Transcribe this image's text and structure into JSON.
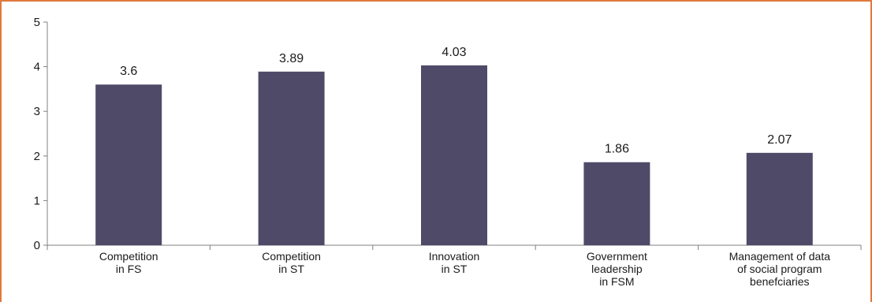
{
  "chart_data": {
    "type": "bar",
    "categories": [
      [
        "Competition",
        "in FS"
      ],
      [
        "Competition",
        "in ST"
      ],
      [
        "Innovation",
        "in ST"
      ],
      [
        "Government",
        "leadership",
        "in FSM"
      ],
      [
        "Management of data",
        "of social program",
        "benefciaries"
      ]
    ],
    "values": [
      3.6,
      3.89,
      4.03,
      1.86,
      2.07
    ],
    "data_labels": [
      "3.6",
      "3.89",
      "4.03",
      "1.86",
      "2.07"
    ],
    "yticks": [
      "0",
      "1",
      "2",
      "3",
      "4",
      "5"
    ],
    "ylim": [
      0,
      5
    ],
    "title": "",
    "xlabel": "",
    "ylabel": "",
    "grid": false,
    "bar_color": "#4f4a68",
    "axis_color": "#808080",
    "frame_color": "#e07a3c"
  }
}
